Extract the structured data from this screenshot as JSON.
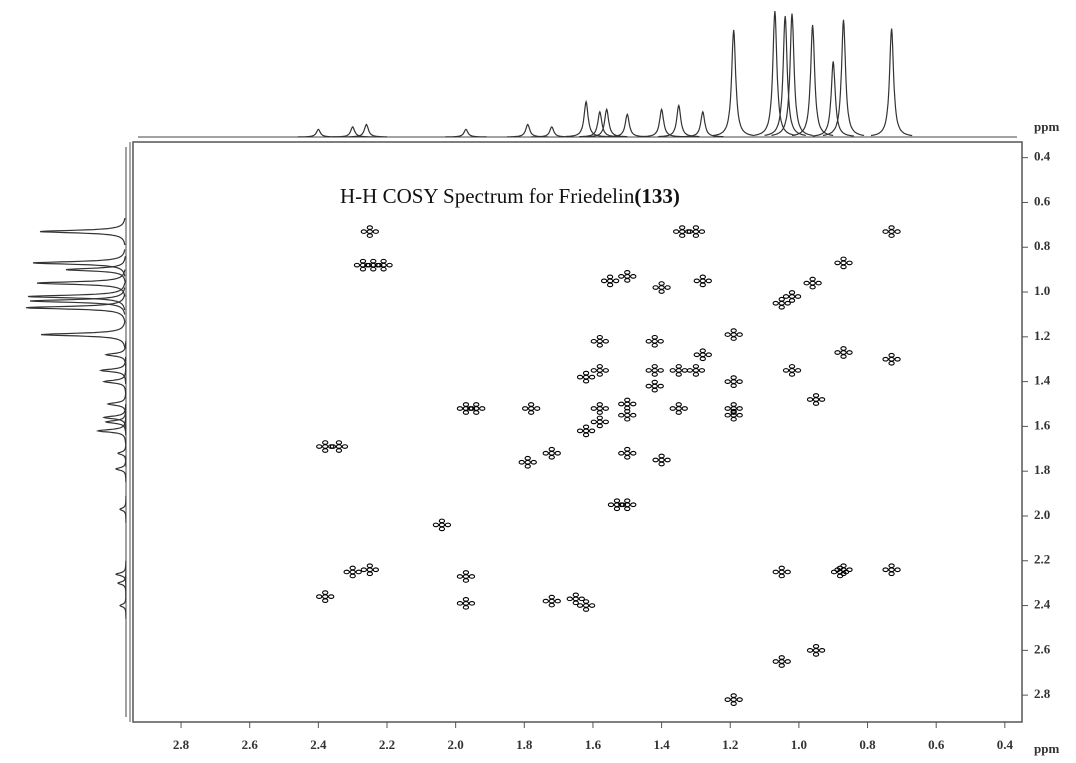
{
  "chart_data": {
    "type": "cosy",
    "title": "H-H COSY Spectrum for Friedelin",
    "title_compound": "(133)",
    "x_label": "ppm",
    "y_label": "ppm",
    "xlim": [
      2.94,
      0.35
    ],
    "ylim": [
      0.33,
      2.92
    ],
    "xticks": [
      2.8,
      2.6,
      2.4,
      2.2,
      {
        "value": 2,
        "label": "2.0"
      },
      1.8,
      1.6,
      1.4,
      1.2,
      {
        "value": 1,
        "label": "1.0"
      },
      0.8,
      0.6,
      0.4
    ],
    "yticks": [
      0.4,
      0.6,
      0.8,
      {
        "value": 1,
        "label": "1.0"
      },
      1.2,
      1.4,
      1.6,
      1.8,
      {
        "value": 2,
        "label": "2.0"
      },
      2.2,
      2.4,
      2.6,
      2.8
    ],
    "color": "#000000",
    "projection": {
      "ppm": [
        0.73,
        0.87,
        0.9,
        0.96,
        1.02,
        1.04,
        1.07,
        1.19,
        1.28,
        1.35,
        1.4,
        1.5,
        1.56,
        1.58,
        1.62,
        1.72,
        1.79,
        1.97,
        2.26,
        2.3,
        2.4
      ],
      "intensity": [
        86,
        93,
        60,
        89,
        98,
        96,
        100,
        85,
        20,
        25,
        22,
        18,
        22,
        20,
        28,
        8,
        10,
        6,
        10,
        8,
        6
      ]
    },
    "cross_peaks": {
      "x": [
        0.73,
        0.87,
        0.96,
        1.02,
        1.05,
        1.19,
        1.28,
        1.35,
        1.42,
        1.5,
        1.58,
        1.62,
        1.72,
        1.79,
        2.24,
        2.27,
        2.21,
        2.25,
        2.38,
        2.34,
        1.97,
        1.94,
        1.53,
        1.5,
        1.19,
        2.3,
        2.25,
        2.38,
        1.97,
        1.97,
        1.65,
        1.62,
        1.72,
        0.87,
        0.88,
        0.73,
        1.05,
        0.95,
        1.02,
        0.87,
        0.73,
        1.3,
        1.34,
        1.5,
        1.55,
        1.4,
        1.28,
        1.19,
        1.3,
        1.42,
        1.58,
        1.58,
        1.42,
        1.5,
        1.58,
        1.35,
        1.19,
        1.19,
        1.62,
        2.04,
        1.05,
        0.95,
        1.4,
        1.78,
        1.5
      ],
      "y": [
        0.73,
        0.87,
        0.96,
        1.02,
        1.05,
        1.19,
        1.28,
        1.35,
        1.42,
        1.5,
        1.58,
        1.62,
        1.72,
        1.76,
        0.88,
        0.88,
        0.88,
        0.73,
        1.69,
        1.69,
        1.52,
        1.52,
        1.95,
        1.95,
        2.82,
        2.25,
        2.24,
        2.36,
        2.27,
        2.39,
        2.37,
        2.4,
        2.38,
        2.24,
        2.25,
        2.24,
        2.25,
        1.48,
        1.35,
        1.27,
        1.3,
        0.73,
        0.73,
        0.93,
        0.95,
        0.98,
        0.95,
        1.4,
        1.35,
        1.35,
        1.35,
        1.22,
        1.22,
        1.55,
        1.52,
        1.52,
        1.55,
        1.52,
        1.38,
        2.04,
        2.65,
        2.6,
        1.75,
        1.52,
        1.72
      ]
    }
  }
}
